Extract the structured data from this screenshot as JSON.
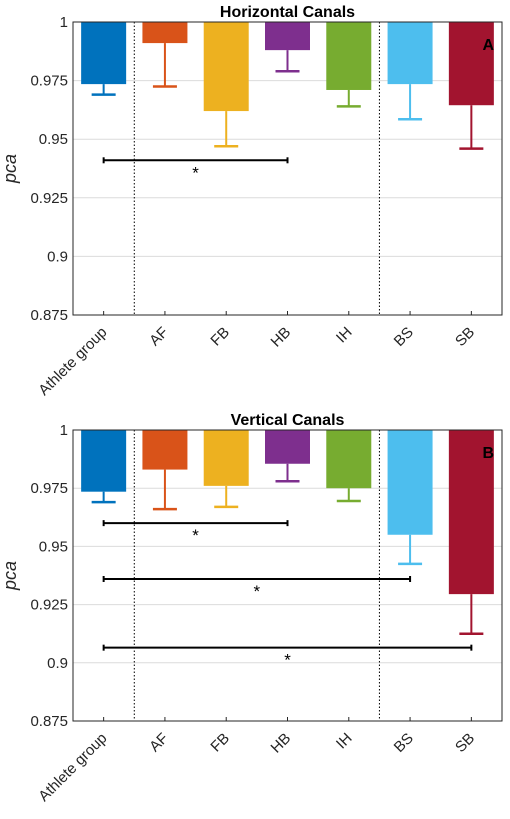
{
  "chart_data": [
    {
      "type": "bar",
      "title": "Horizontal Canals",
      "panel_label": "A",
      "ylabel": "pca",
      "ylim": [
        0.875,
        1
      ],
      "yticks": [
        "0.875",
        "0.9",
        "0.925",
        "0.95",
        "0.975",
        "1"
      ],
      "grid": true,
      "categories": [
        "Athlete group",
        "AF",
        "FB",
        "HB",
        "IH",
        "BS",
        "SB"
      ],
      "colors": [
        "#0072bd",
        "#d95319",
        "#edb120",
        "#7e2f8e",
        "#77ac30",
        "#4dbeee",
        "#a2142f"
      ],
      "values": [
        0.9735,
        0.991,
        0.962,
        0.988,
        0.971,
        0.9735,
        0.9645
      ],
      "error_low": [
        0.969,
        0.9725,
        0.947,
        0.979,
        0.964,
        0.9585,
        0.946
      ],
      "separators_after_index": [
        0,
        4
      ],
      "significance": [
        {
          "from": "Athlete group",
          "to": "HB",
          "y": 0.941,
          "label": "*"
        }
      ]
    },
    {
      "type": "bar",
      "title": "Vertical Canals",
      "panel_label": "B",
      "ylabel": "pca",
      "ylim": [
        0.875,
        1
      ],
      "yticks": [
        "0.875",
        "0.9",
        "0.925",
        "0.95",
        "0.975",
        "1"
      ],
      "grid": true,
      "categories": [
        "Athlete group",
        "AF",
        "FB",
        "HB",
        "IH",
        "BS",
        "SB"
      ],
      "colors": [
        "#0072bd",
        "#d95319",
        "#edb120",
        "#7e2f8e",
        "#77ac30",
        "#4dbeee",
        "#a2142f"
      ],
      "values": [
        0.9735,
        0.983,
        0.976,
        0.9855,
        0.975,
        0.955,
        0.9295
      ],
      "error_low": [
        0.969,
        0.966,
        0.967,
        0.978,
        0.9695,
        0.9425,
        0.9125
      ],
      "separators_after_index": [
        0,
        4
      ],
      "significance": [
        {
          "from": "Athlete group",
          "to": "HB",
          "y": 0.96,
          "label": "*"
        },
        {
          "from": "Athlete group",
          "to": "BS",
          "y": 0.936,
          "label": "*"
        },
        {
          "from": "Athlete group",
          "to": "SB",
          "y": 0.9065,
          "label": "*"
        }
      ]
    }
  ]
}
